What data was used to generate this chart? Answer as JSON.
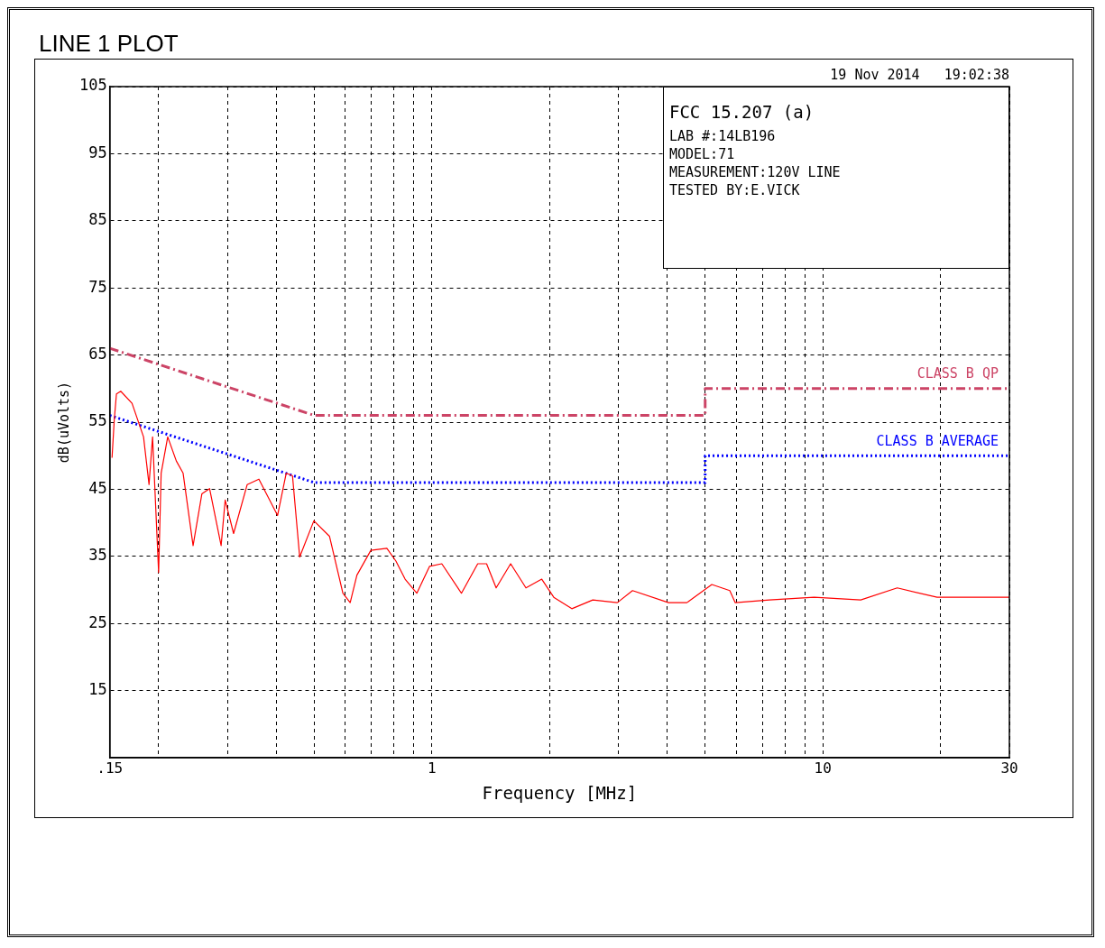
{
  "chart_data": {
    "type": "line",
    "title": "LINE 1 PLOT",
    "xlabel": "Frequency [MHz]",
    "ylabel": "dB(uVolts)",
    "annotations": [
      "19 Nov 2014   19:02:38",
      "FCC 15.207 (a)",
      "LAB #:14LB196",
      "MODEL:71",
      "MEASUREMENT:120V LINE",
      "TESTED BY:E.VICK"
    ],
    "log": "x",
    "grid": true,
    "legend": false,
    "marker": "none",
    "xlim": [
      0.15,
      30
    ],
    "xticks": [
      {
        "value": 0.15,
        "label": ".15"
      },
      {
        "value": 0.2,
        "label": null
      },
      {
        "value": 0.3,
        "label": null
      },
      {
        "value": 0.4,
        "label": null
      },
      {
        "value": 0.5,
        "label": null
      },
      {
        "value": 0.6,
        "label": null
      },
      {
        "value": 0.7,
        "label": null
      },
      {
        "value": 0.8,
        "label": null
      },
      {
        "value": 0.9,
        "label": null
      },
      1,
      {
        "value": 2,
        "label": null
      },
      {
        "value": 3,
        "label": null
      },
      {
        "value": 4,
        "label": null
      },
      {
        "value": 5,
        "label": null
      },
      {
        "value": 6,
        "label": null
      },
      {
        "value": 7,
        "label": null
      },
      {
        "value": 8,
        "label": null
      },
      {
        "value": 9,
        "label": null
      },
      10,
      {
        "value": 20,
        "label": null
      },
      30
    ],
    "ylim": [
      5,
      105
    ],
    "yticks": [
      15,
      25,
      35,
      45,
      55,
      65,
      75,
      85,
      95,
      105
    ],
    "series": [
      {
        "color": "#ff0000",
        "line_style": "solid",
        "x": [
          0.152,
          0.154,
          0.156,
          0.16,
          0.171,
          0.183,
          0.189,
          0.193,
          0.2,
          0.203,
          0.211,
          0.222,
          0.231,
          0.245,
          0.258,
          0.27,
          0.289,
          0.296,
          0.311,
          0.337,
          0.361,
          0.403,
          0.424,
          0.44,
          0.459,
          0.499,
          0.547,
          0.592,
          0.618,
          0.643,
          0.698,
          0.767,
          0.809,
          0.854,
          0.915,
          0.986,
          1.06,
          1.19,
          1.31,
          1.38,
          1.46,
          1.59,
          1.74,
          1.91,
          2.05,
          2.28,
          2.58,
          2.98,
          3.26,
          4.03,
          4.49,
          5.2,
          5.78,
          5.97,
          7.3,
          9.5,
          12.5,
          15.5,
          19.6,
          23.5,
          30
        ],
        "values": [
          49.7,
          55.3,
          59.2,
          59.6,
          57.8,
          52.8,
          45.7,
          52.8,
          32.6,
          47.4,
          52.8,
          49.2,
          47.4,
          36.6,
          44.3,
          45.1,
          36.6,
          43.4,
          38.4,
          45.7,
          46.5,
          41.1,
          47.4,
          47.0,
          34.9,
          40.3,
          38.0,
          29.5,
          28.1,
          32.2,
          35.9,
          36.2,
          34.3,
          31.6,
          29.5,
          33.5,
          33.9,
          29.5,
          33.9,
          33.9,
          30.3,
          33.9,
          30.3,
          31.6,
          28.9,
          27.2,
          28.5,
          28.1,
          29.9,
          28.1,
          28.1,
          30.8,
          29.9,
          28.1,
          28.5,
          28.9,
          28.5,
          30.3,
          28.9,
          28.9,
          28.9
        ]
      },
      {
        "name": "CLASS B QP",
        "color": "#cc4466",
        "line_style": "dashed",
        "x": [
          0.15,
          0.5,
          5,
          5,
          30
        ],
        "values": [
          66,
          56,
          56,
          60,
          60
        ]
      },
      {
        "name": "CLASS B AVERAGE",
        "color": "#0000ff",
        "line_style": "dotted",
        "x": [
          0.15,
          0.5,
          5,
          5,
          30
        ],
        "values": [
          56,
          46,
          46,
          50,
          50
        ]
      }
    ]
  }
}
